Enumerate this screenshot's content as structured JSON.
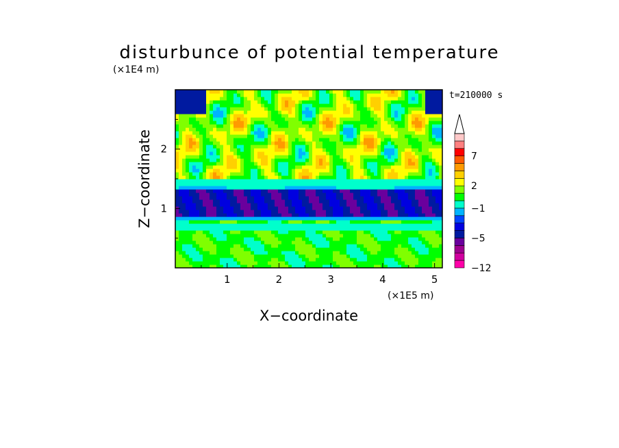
{
  "chart_data": {
    "type": "heatmap",
    "title": "disturbunce of potential temperature",
    "time_label": "t=210000 s",
    "xlabel": "X−coordinate",
    "ylabel": "Z−coordinate",
    "x_unit": "(×1E5 m)",
    "y_unit": "(×1E4 m)",
    "xlim": [
      0,
      5.15
    ],
    "ylim": [
      0,
      3.0
    ],
    "x_ticks": [
      1,
      2,
      3,
      4,
      5
    ],
    "y_ticks": [
      1,
      2
    ],
    "colorbar": {
      "levels": [
        -12,
        -10,
        -8,
        -6,
        -5,
        -4,
        -3,
        -2,
        -1,
        0,
        1,
        2,
        3,
        4,
        5,
        7,
        9,
        11
      ],
      "colors": [
        "#ff00a8",
        "#d0009f",
        "#9e0090",
        "#6a009d",
        "#001aa0",
        "#0000e0",
        "#0044ff",
        "#00b4ff",
        "#00ffcc",
        "#00ff00",
        "#80ff00",
        "#ffff00",
        "#ffd000",
        "#ff9a00",
        "#ff5a00",
        "#ff0000",
        "#ff8080",
        "#ffc8c8"
      ],
      "tick_labels": [
        "−12",
        "−5",
        "−1",
        "2",
        "7"
      ],
      "tick_values": [
        -12,
        -5,
        -1,
        2,
        7
      ],
      "extend": "max"
    },
    "fields": {
      "band_top_z": 1.35,
      "band_bottom_z": 0.78,
      "band_value": -4.5,
      "background_value": 0.5
    }
  }
}
